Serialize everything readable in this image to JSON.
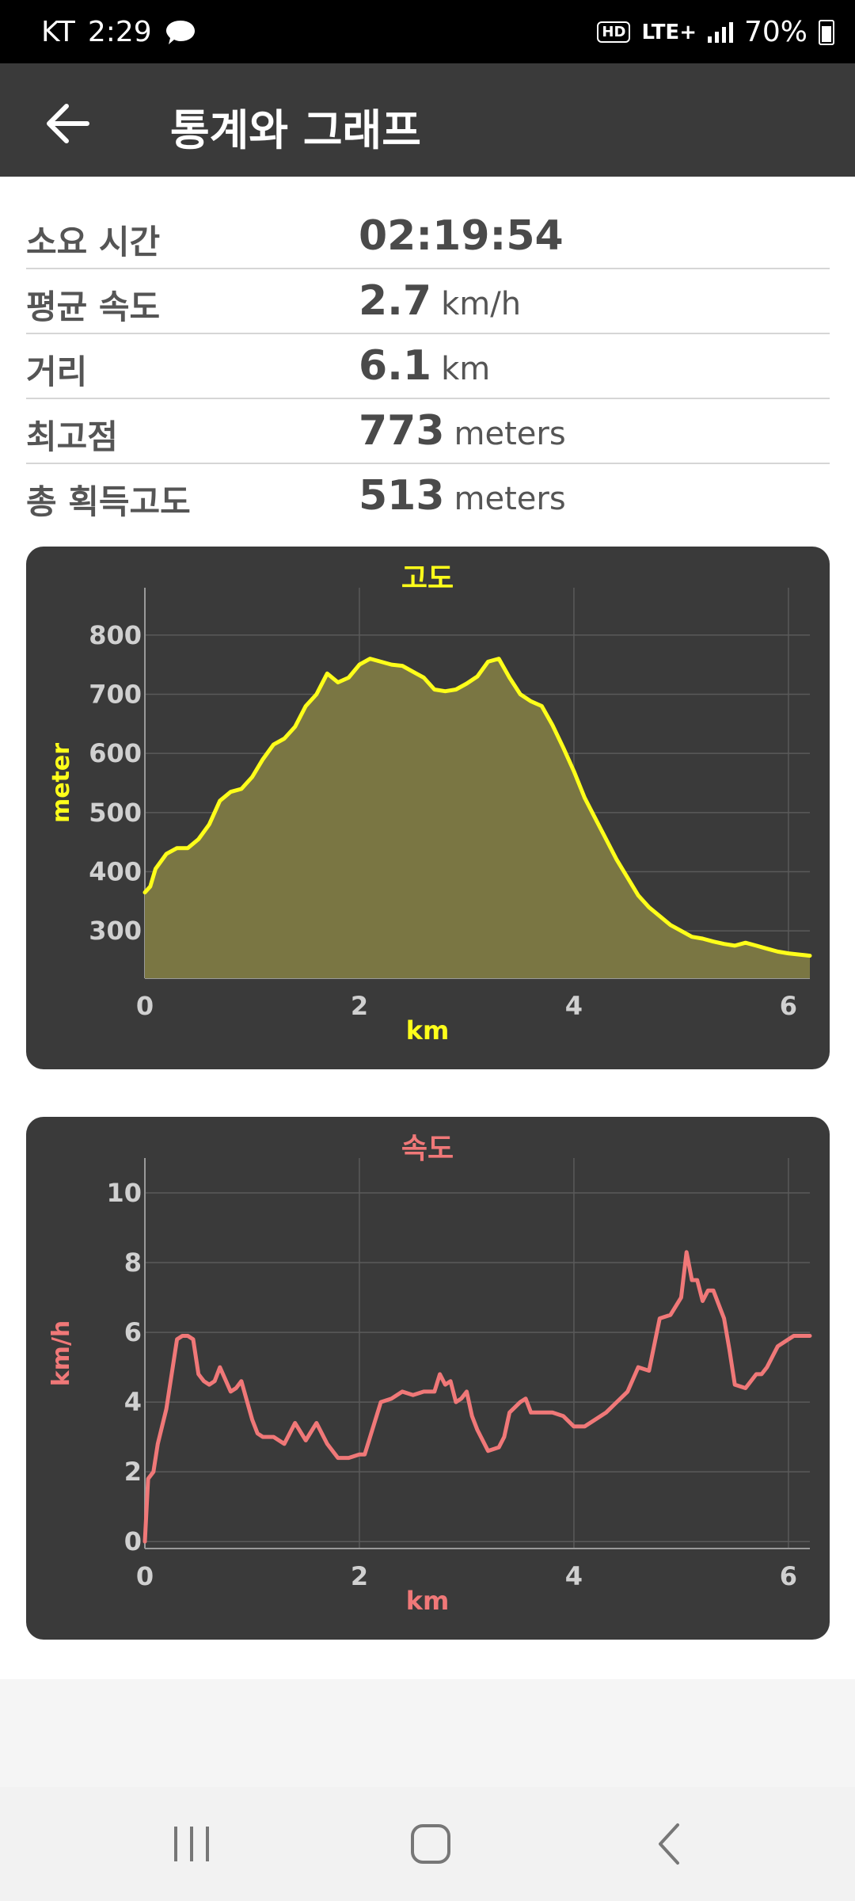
{
  "status_bar": {
    "carrier": "KT",
    "time": "2:29",
    "hd": "HD",
    "network": "LTE+",
    "battery": "70%"
  },
  "app_bar": {
    "title": "통계와 그래프"
  },
  "stats": [
    {
      "label": "소요 시간",
      "value": "02:19:54",
      "unit": ""
    },
    {
      "label": "평균 속도",
      "value": "2.7",
      "unit": "km/h"
    },
    {
      "label": "거리",
      "value": "6.1",
      "unit": "km"
    },
    {
      "label": "최고점",
      "value": "773",
      "unit": "meters"
    },
    {
      "label": "총 획득고도",
      "value": "513",
      "unit": "meters"
    }
  ],
  "chart_data": [
    {
      "type": "area",
      "title": "고도",
      "xlabel": "km",
      "ylabel": "meter",
      "xlim": [
        0,
        6.2
      ],
      "ylim": [
        220,
        880
      ],
      "xticks": [
        0,
        2,
        4,
        6
      ],
      "yticks": [
        300,
        400,
        500,
        600,
        700,
        800
      ],
      "color": "#ffff1a",
      "fill": "#7a7643",
      "grid": true,
      "series": [
        {
          "x": [
            0,
            0.05,
            0.1,
            0.2,
            0.3,
            0.4,
            0.5,
            0.6,
            0.7,
            0.8,
            0.9,
            1.0,
            1.1,
            1.2,
            1.3,
            1.4,
            1.5,
            1.6,
            1.7,
            1.8,
            1.9,
            2.0,
            2.1,
            2.2,
            2.3,
            2.4,
            2.5,
            2.6,
            2.7,
            2.8,
            2.9,
            3.0,
            3.1,
            3.2,
            3.3,
            3.4,
            3.5,
            3.6,
            3.7,
            3.8,
            3.9,
            4.0,
            4.1,
            4.2,
            4.3,
            4.4,
            4.5,
            4.6,
            4.7,
            4.8,
            4.9,
            5.0,
            5.1,
            5.2,
            5.3,
            5.4,
            5.5,
            5.6,
            5.7,
            5.8,
            5.9,
            6.0,
            6.1,
            6.2
          ],
          "y": [
            365,
            375,
            405,
            430,
            440,
            440,
            455,
            480,
            520,
            535,
            540,
            560,
            590,
            615,
            625,
            645,
            680,
            700,
            735,
            720,
            728,
            750,
            760,
            755,
            750,
            748,
            738,
            728,
            708,
            705,
            708,
            718,
            730,
            755,
            760,
            728,
            700,
            688,
            680,
            648,
            610,
            570,
            525,
            490,
            455,
            420,
            390,
            360,
            340,
            325,
            310,
            300,
            290,
            287,
            282,
            278,
            275,
            280,
            275,
            270,
            265,
            262,
            260,
            258
          ]
        }
      ]
    },
    {
      "type": "line",
      "title": "속도",
      "xlabel": "km",
      "ylabel": "km/h",
      "xlim": [
        0,
        6.2
      ],
      "ylim": [
        -0.2,
        11
      ],
      "xticks": [
        0,
        2,
        4,
        6
      ],
      "yticks": [
        0,
        2,
        4,
        6,
        8,
        10
      ],
      "color": "#f07878",
      "grid": true,
      "series": [
        {
          "x": [
            0,
            0.03,
            0.08,
            0.12,
            0.2,
            0.3,
            0.35,
            0.4,
            0.45,
            0.5,
            0.55,
            0.6,
            0.65,
            0.7,
            0.8,
            0.85,
            0.9,
            1.0,
            1.05,
            1.1,
            1.15,
            1.2,
            1.3,
            1.4,
            1.5,
            1.6,
            1.7,
            1.8,
            1.9,
            2.0,
            2.05,
            2.1,
            2.2,
            2.3,
            2.4,
            2.5,
            2.6,
            2.7,
            2.75,
            2.8,
            2.85,
            2.9,
            2.95,
            3.0,
            3.05,
            3.1,
            3.2,
            3.3,
            3.35,
            3.4,
            3.5,
            3.55,
            3.6,
            3.7,
            3.8,
            3.9,
            4.0,
            4.1,
            4.2,
            4.3,
            4.4,
            4.5,
            4.6,
            4.7,
            4.8,
            4.9,
            5.0,
            5.05,
            5.1,
            5.15,
            5.2,
            5.25,
            5.3,
            5.35,
            5.4,
            5.45,
            5.5,
            5.6,
            5.7,
            5.75,
            5.8,
            5.85,
            5.9,
            6.0,
            6.05,
            6.1,
            6.15,
            6.2
          ],
          "y": [
            0,
            1.8,
            2.0,
            2.8,
            3.8,
            5.8,
            5.9,
            5.9,
            5.8,
            4.8,
            4.6,
            4.5,
            4.6,
            5.0,
            4.3,
            4.4,
            4.6,
            3.5,
            3.1,
            3.0,
            3.0,
            3.0,
            2.8,
            3.4,
            2.9,
            3.4,
            2.8,
            2.4,
            2.4,
            2.5,
            2.5,
            3.0,
            4.0,
            4.1,
            4.3,
            4.2,
            4.3,
            4.3,
            4.8,
            4.5,
            4.6,
            4.0,
            4.1,
            4.3,
            3.6,
            3.2,
            2.6,
            2.7,
            3.0,
            3.7,
            4.0,
            4.1,
            3.7,
            3.7,
            3.7,
            3.6,
            3.3,
            3.3,
            3.5,
            3.7,
            4.0,
            4.3,
            5.0,
            4.9,
            6.4,
            6.5,
            7.0,
            8.3,
            7.5,
            7.5,
            6.9,
            7.2,
            7.2,
            6.8,
            6.4,
            5.5,
            4.5,
            4.4,
            4.8,
            4.8,
            5.0,
            5.3,
            5.6,
            5.8,
            5.9,
            5.9,
            5.9,
            5.9
          ]
        }
      ]
    }
  ]
}
